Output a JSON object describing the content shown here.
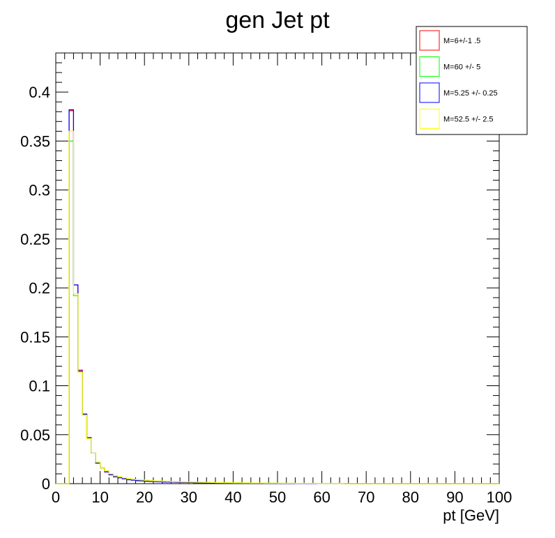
{
  "chart_data": {
    "type": "histogram",
    "title": "gen Jet pt",
    "xlabel": "pt [GeV]",
    "ylabel": "",
    "xlim": [
      0,
      100
    ],
    "ylim": [
      0,
      0.44
    ],
    "grid": false,
    "legend_position": "top-right",
    "bin_width": 1,
    "x_ticks": [
      "0",
      "10",
      "20",
      "30",
      "40",
      "50",
      "60",
      "70",
      "80",
      "90",
      "100"
    ],
    "y_ticks": [
      "0",
      "0.05",
      "0.1",
      "0.15",
      "0.2",
      "0.25",
      "0.3",
      "0.35",
      "0.4"
    ],
    "series": [
      {
        "name": "M=6+/-1 .5",
        "color": "#ff0000",
        "values": [
          0,
          0,
          0,
          0.381,
          0.203,
          0.116,
          0.071,
          0.047,
          0.031,
          0.021,
          0.016,
          0.012,
          0.009,
          0.007,
          0.006,
          0.005,
          0.004,
          0.0035,
          0.003,
          0.0028,
          0.0025,
          0.0023,
          0.0021,
          0.0019,
          0.0017,
          0.0016,
          0.0015,
          0.0014,
          0.0013,
          0.0012,
          0.0011,
          0.001,
          0.001,
          0.0009,
          0.0009,
          0.0008,
          0.0008,
          0.0007,
          0.0007,
          0.0006,
          0.0006,
          0.0005,
          0.0005,
          0.0005,
          0.0004,
          0.0004,
          0.0004,
          0.0003,
          0.0003,
          0.0003,
          0.0003,
          0.0002,
          0.0002,
          0.0002,
          0.0002,
          0.0002,
          0.0001,
          0.0001,
          0.0001,
          0.0001,
          0.0001,
          0.0001,
          0.0001,
          0.0001,
          0.0001
        ]
      },
      {
        "name": "M=60 +/- 5",
        "color": "#00ff00",
        "values": [
          0,
          0,
          0,
          0.35,
          0.192,
          0.114,
          0.07,
          0.046,
          0.031,
          0.022,
          0.016,
          0.013,
          0.01,
          0.008,
          0.007,
          0.006,
          0.005,
          0.0045,
          0.004,
          0.0037,
          0.0034,
          0.0031,
          0.0028,
          0.0026,
          0.0024,
          0.0022,
          0.002,
          0.0019,
          0.0018,
          0.0017,
          0.0016,
          0.0015,
          0.0014,
          0.0013,
          0.0012,
          0.0011,
          0.001,
          0.001,
          0.0009,
          0.0009,
          0.0008,
          0.0008,
          0.0007,
          0.0007,
          0.0006,
          0.0006,
          0.0006,
          0.0005,
          0.0005,
          0.0005,
          0.0004,
          0.0004,
          0.0004,
          0.0004,
          0.0003,
          0.0003,
          0.0003,
          0.0003,
          0.0003,
          0.0002,
          0.0002,
          0.0002,
          0.0002,
          0.0002,
          0.0002
        ]
      },
      {
        "name": "M=5.25 +/- 0.25",
        "color": "#0000ff",
        "values": [
          0,
          0,
          0,
          0.382,
          0.203,
          0.115,
          0.071,
          0.047,
          0.031,
          0.021,
          0.016,
          0.012,
          0.009,
          0.007,
          0.006,
          0.005,
          0.004,
          0.0035,
          0.003,
          0.0028,
          0.0025,
          0.0023,
          0.0021,
          0.0019,
          0.0017,
          0.0016,
          0.0015,
          0.0014,
          0.0013,
          0.0012,
          0.0011,
          0.001,
          0.001,
          0.0009,
          0.0009,
          0.0008,
          0.0008,
          0.0007,
          0.0007,
          0.0006,
          0.0006,
          0.0005,
          0.0005,
          0.0005,
          0.0004,
          0.0004,
          0.0004,
          0.0003,
          0.0003,
          0.0003,
          0.0003,
          0.0002,
          0.0002,
          0.0002,
          0.0002,
          0.0002,
          0.0001,
          0.0001,
          0.0001,
          0.0001,
          0.0001,
          0.0001,
          0.0001,
          0.0001,
          0.0001
        ]
      },
      {
        "name": "M=52.5 +/- 2.5",
        "color": "#ffff00",
        "values": [
          0,
          0,
          0,
          0.36,
          0.194,
          0.114,
          0.07,
          0.046,
          0.031,
          0.022,
          0.016,
          0.013,
          0.01,
          0.008,
          0.007,
          0.006,
          0.005,
          0.0045,
          0.004,
          0.0037,
          0.0034,
          0.0031,
          0.0028,
          0.0026,
          0.0024,
          0.0022,
          0.002,
          0.0019,
          0.0018,
          0.0017,
          0.0016,
          0.0015,
          0.0014,
          0.0013,
          0.0012,
          0.0011,
          0.001,
          0.001,
          0.0009,
          0.0009,
          0.0008,
          0.0008,
          0.0007,
          0.0007,
          0.0006,
          0.0006,
          0.0006,
          0.0005,
          0.0005,
          0.0005,
          0.0004,
          0.0004,
          0.0004,
          0.0004,
          0.0003,
          0.0003,
          0.0003,
          0.0003,
          0.0003,
          0.0002,
          0.0002,
          0.0002,
          0.0002,
          0.0002,
          0.0002
        ]
      }
    ]
  }
}
